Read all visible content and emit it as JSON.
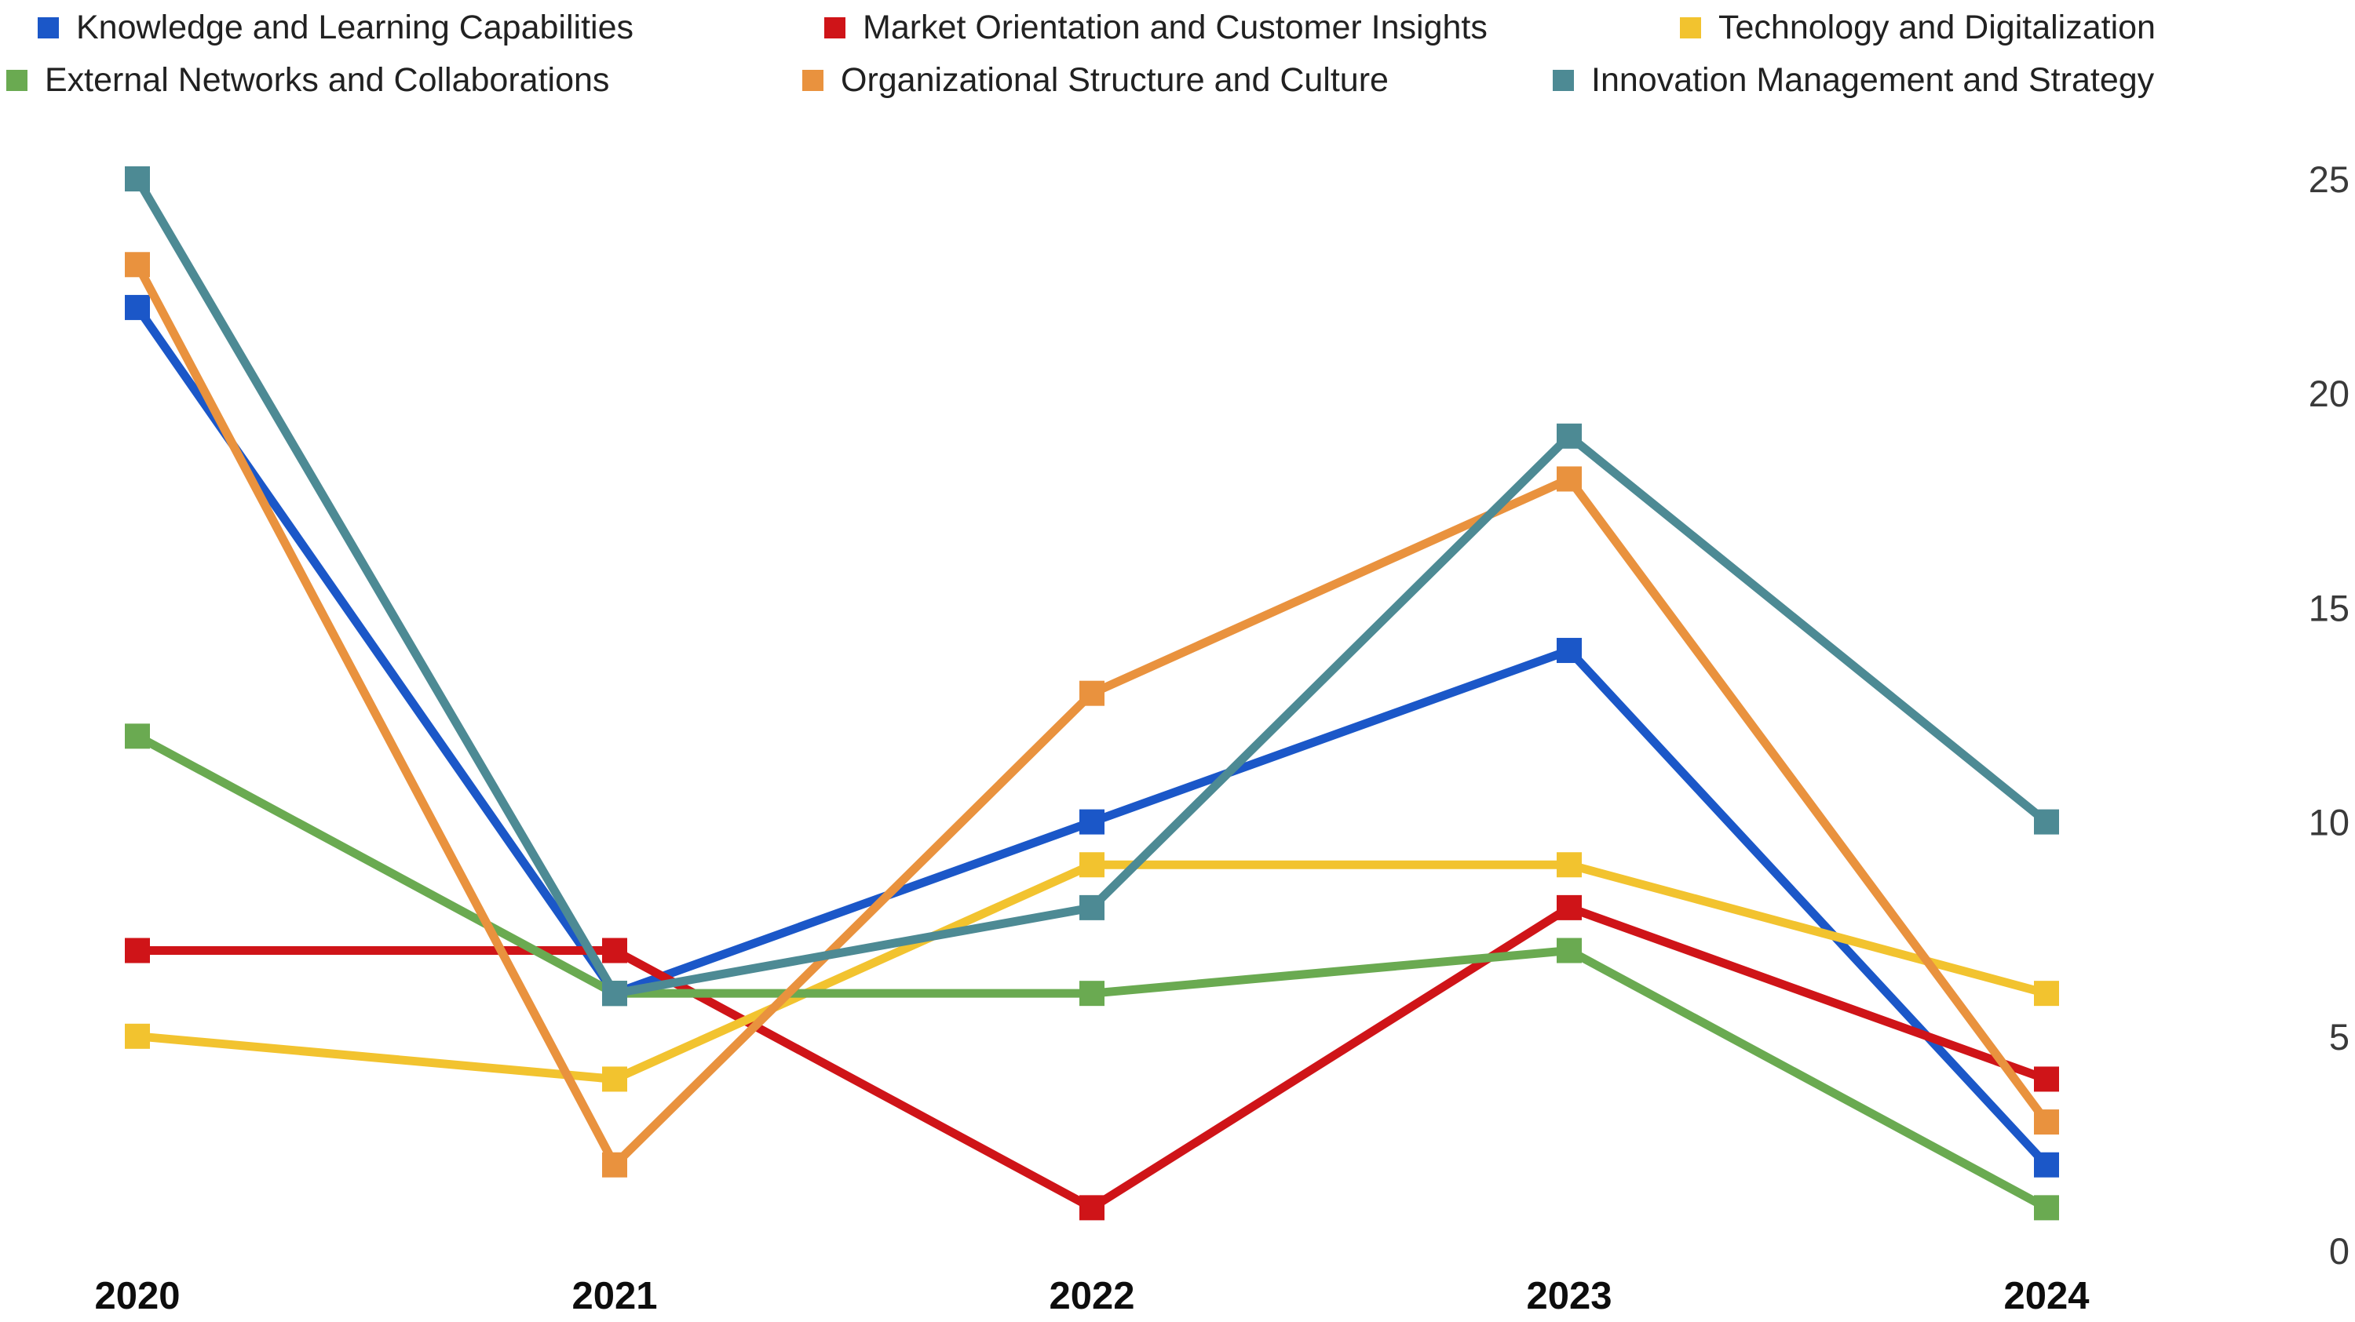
{
  "chart_data": {
    "type": "line",
    "title": "",
    "xlabel": "",
    "ylabel": "",
    "categories": [
      "2020",
      "2021",
      "2022",
      "2023",
      "2024"
    ],
    "series": [
      {
        "name": "Knowledge and Learning Capabilities",
        "color": "#1b57c8",
        "values": [
          22,
          6,
          10,
          14,
          2
        ]
      },
      {
        "name": "Market Orientation and Customer Insights",
        "color": "#cf1418",
        "values": [
          7,
          7,
          1,
          8,
          4
        ]
      },
      {
        "name": "Technology and Digitalization",
        "color": "#f2c32f",
        "values": [
          5,
          4,
          9,
          9,
          6
        ]
      },
      {
        "name": "External Networks and Collaborations",
        "color": "#6aaa51",
        "values": [
          12,
          6,
          6,
          7,
          1
        ]
      },
      {
        "name": "Organizational Structure and Culture",
        "color": "#e9923e",
        "values": [
          23,
          2,
          13,
          18,
          3
        ]
      },
      {
        "name": "Innovation Management and Strategy",
        "color": "#4d8a94",
        "values": [
          25,
          6,
          8,
          19,
          10
        ]
      }
    ],
    "y_ticks": [
      0,
      5,
      10,
      15,
      20,
      25
    ],
    "ylim": [
      0,
      25
    ],
    "grid": "off",
    "legend_position": "top",
    "marker": "square",
    "y_axis_side": "right"
  }
}
